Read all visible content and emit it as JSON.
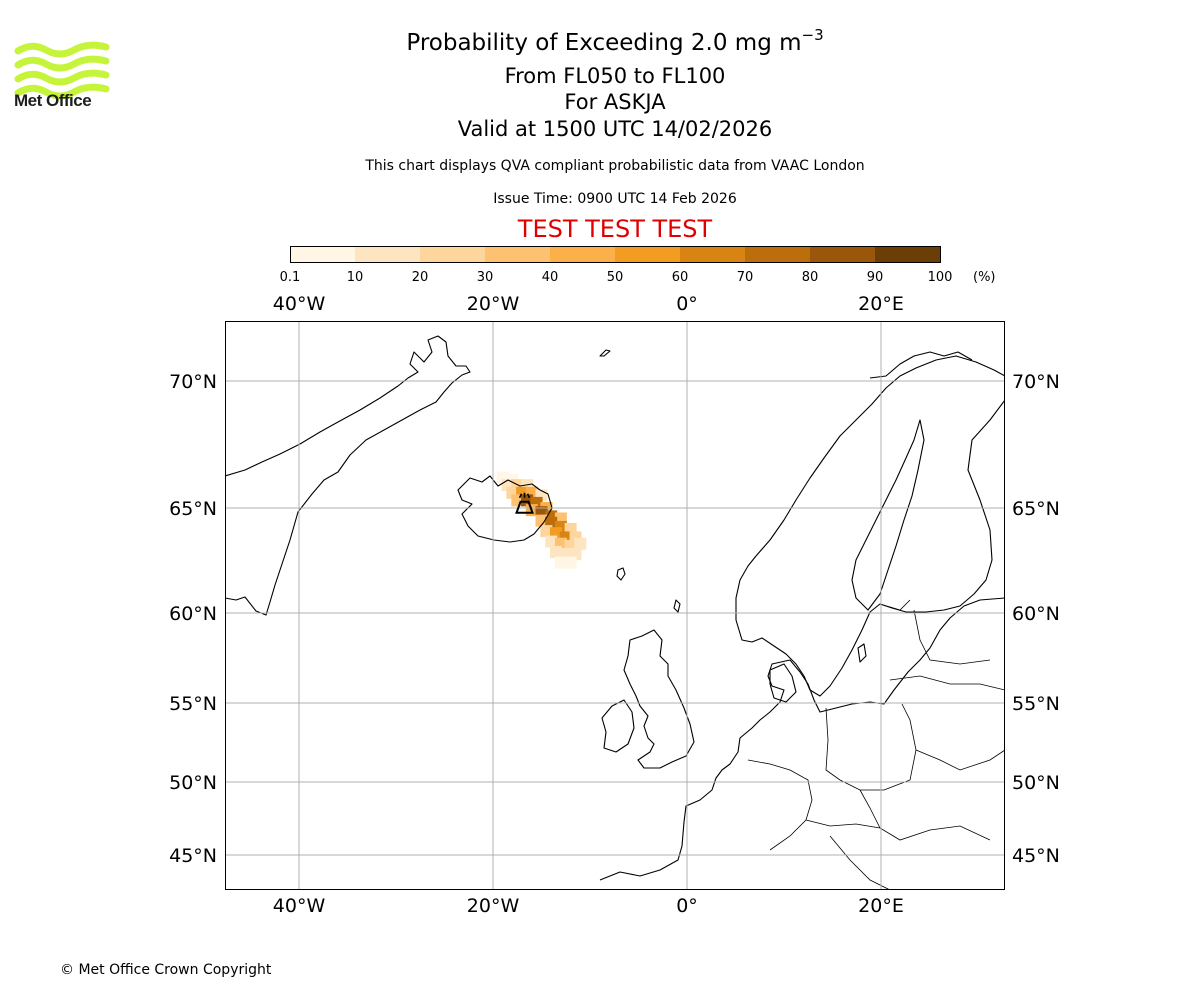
{
  "branding": {
    "logo_text": "Met Office",
    "logo_color": "#c6f43a",
    "copyright": "© Met Office Crown Copyright"
  },
  "header": {
    "title_prefix": "Probability of Exceeding 2.0 mg m",
    "title_exponent": "−3",
    "levels": "From FL050 to FL100",
    "volcano": "For ASKJA",
    "valid": "Valid at 1500 UTC 14/02/2026",
    "disclaimer": "This chart displays QVA compliant probabilistic data from VAAC London",
    "issue_time": "Issue Time: 0900 UTC 14 Feb 2026",
    "test_banner": "TEST TEST TEST",
    "test_color": "#e00000"
  },
  "colorbar": {
    "ticks": [
      "0.1",
      "10",
      "20",
      "30",
      "40",
      "50",
      "60",
      "70",
      "80",
      "90",
      "100"
    ],
    "unit": "(%)",
    "colors": [
      "#fff6e6",
      "#fee5c2",
      "#fed59c",
      "#fdc271",
      "#fbb04a",
      "#f29d22",
      "#d88413",
      "#bc6d0c",
      "#9a560a",
      "#6b3d07"
    ]
  },
  "map": {
    "lon_labels": [
      "40°W",
      "20°W",
      "0°",
      "20°E"
    ],
    "lat_labels": [
      "70°N",
      "65°N",
      "60°N",
      "55°N",
      "50°N",
      "45°N"
    ],
    "gridline_color": "#b0b0b0",
    "volcano_name": "ASKJA",
    "volcano_marker": "volcano-icon",
    "plume": [
      {
        "lon": -19.0,
        "lat": 66.2,
        "prob": 5
      },
      {
        "lon": -18.0,
        "lat": 66.1,
        "prob": 8
      },
      {
        "lon": -18.5,
        "lat": 65.9,
        "prob": 10
      },
      {
        "lon": -17.5,
        "lat": 65.9,
        "prob": 20
      },
      {
        "lon": -16.5,
        "lat": 65.9,
        "prob": 15
      },
      {
        "lon": -18.0,
        "lat": 65.6,
        "prob": 25
      },
      {
        "lon": -17.0,
        "lat": 65.6,
        "prob": 55
      },
      {
        "lon": -16.0,
        "lat": 65.6,
        "prob": 40
      },
      {
        "lon": -15.0,
        "lat": 65.5,
        "prob": 15
      },
      {
        "lon": -17.5,
        "lat": 65.3,
        "prob": 35
      },
      {
        "lon": -16.5,
        "lat": 65.3,
        "prob": 80
      },
      {
        "lon": -15.5,
        "lat": 65.2,
        "prob": 75
      },
      {
        "lon": -14.5,
        "lat": 65.0,
        "prob": 45
      },
      {
        "lon": -16.0,
        "lat": 64.9,
        "prob": 40
      },
      {
        "lon": -15.0,
        "lat": 64.8,
        "prob": 85
      },
      {
        "lon": -14.0,
        "lat": 64.6,
        "prob": 70
      },
      {
        "lon": -13.0,
        "lat": 64.5,
        "prob": 30
      },
      {
        "lon": -15.0,
        "lat": 64.4,
        "prob": 30
      },
      {
        "lon": -14.0,
        "lat": 64.3,
        "prob": 75
      },
      {
        "lon": -13.0,
        "lat": 64.1,
        "prob": 65
      },
      {
        "lon": -12.0,
        "lat": 64.0,
        "prob": 25
      },
      {
        "lon": -14.5,
        "lat": 63.9,
        "prob": 25
      },
      {
        "lon": -13.5,
        "lat": 63.8,
        "prob": 55
      },
      {
        "lon": -12.5,
        "lat": 63.6,
        "prob": 60
      },
      {
        "lon": -11.5,
        "lat": 63.6,
        "prob": 20
      },
      {
        "lon": -14.0,
        "lat": 63.4,
        "prob": 15
      },
      {
        "lon": -13.0,
        "lat": 63.3,
        "prob": 35
      },
      {
        "lon": -12.0,
        "lat": 63.2,
        "prob": 25
      },
      {
        "lon": -11.0,
        "lat": 63.3,
        "prob": 10
      },
      {
        "lon": -13.5,
        "lat": 62.9,
        "prob": 10
      },
      {
        "lon": -12.5,
        "lat": 62.8,
        "prob": 15
      },
      {
        "lon": -11.5,
        "lat": 62.8,
        "prob": 10
      },
      {
        "lon": -13.0,
        "lat": 62.4,
        "prob": 5
      },
      {
        "lon": -12.0,
        "lat": 62.4,
        "prob": 5
      }
    ]
  }
}
